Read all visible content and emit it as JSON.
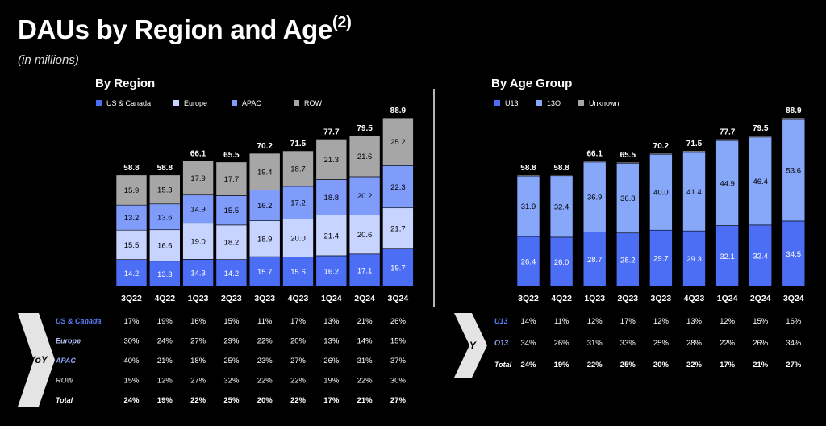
{
  "page": {
    "title": "DAUs by Region and Age",
    "title_sup": "(2)",
    "subtitle": "(in millions)"
  },
  "colors": {
    "us_canada": "#4c6ef5",
    "europe": "#c7d4ff",
    "apac": "#7f9cfb",
    "row": "#a6a6a6",
    "u13": "#4c6ef5",
    "o13": "#87a7f8",
    "unknown": "#a6a6a6",
    "us_label": "#5b7cf7",
    "europe_label": "#b8c7fb",
    "apac_label": "#8fa8fb",
    "row_label": "#a6a6a6"
  },
  "yoy_label": "YoY",
  "chart_data": [
    {
      "type": "bar",
      "stacked": true,
      "title": "By Region",
      "categories": [
        "3Q22",
        "4Q22",
        "1Q23",
        "2Q23",
        "3Q23",
        "4Q23",
        "1Q24",
        "2Q24",
        "3Q24"
      ],
      "series": [
        {
          "name": "US & Canada",
          "values": [
            14.2,
            13.3,
            14.3,
            14.2,
            15.7,
            15.6,
            16.2,
            17.1,
            19.7
          ]
        },
        {
          "name": "Europe",
          "values": [
            15.5,
            16.6,
            19.0,
            18.2,
            18.9,
            20.0,
            21.4,
            20.6,
            21.7
          ]
        },
        {
          "name": "APAC",
          "values": [
            13.2,
            13.6,
            14.9,
            15.5,
            16.2,
            17.2,
            18.8,
            20.2,
            22.3
          ]
        },
        {
          "name": "ROW",
          "values": [
            15.9,
            15.3,
            17.9,
            17.7,
            19.4,
            18.7,
            21.3,
            21.6,
            25.2
          ]
        }
      ],
      "totals": [
        58.8,
        58.8,
        66.1,
        65.5,
        70.2,
        71.5,
        77.7,
        79.5,
        88.9
      ],
      "legend": "top-left",
      "ylim": [
        0,
        100
      ],
      "yoy": {
        "rows": [
          {
            "label": "US & Canada",
            "values": [
              "17%",
              "19%",
              "16%",
              "15%",
              "11%",
              "17%",
              "13%",
              "21%",
              "26%"
            ]
          },
          {
            "label": "Europe",
            "values": [
              "30%",
              "24%",
              "27%",
              "29%",
              "22%",
              "20%",
              "13%",
              "14%",
              "15%"
            ]
          },
          {
            "label": "APAC",
            "values": [
              "40%",
              "21%",
              "18%",
              "25%",
              "23%",
              "27%",
              "26%",
              "31%",
              "37%"
            ]
          },
          {
            "label": "ROW",
            "values": [
              "15%",
              "12%",
              "27%",
              "32%",
              "22%",
              "22%",
              "19%",
              "22%",
              "30%"
            ]
          },
          {
            "label": "Total",
            "values": [
              "24%",
              "19%",
              "22%",
              "25%",
              "20%",
              "22%",
              "17%",
              "21%",
              "27%"
            ]
          }
        ]
      }
    },
    {
      "type": "bar",
      "stacked": true,
      "title": "By Age Group",
      "categories": [
        "3Q22",
        "4Q22",
        "1Q23",
        "2Q23",
        "3Q23",
        "4Q23",
        "1Q24",
        "2Q24",
        "3Q24"
      ],
      "series": [
        {
          "name": "U13",
          "values": [
            26.4,
            26.0,
            28.7,
            28.2,
            29.7,
            29.3,
            32.1,
            32.4,
            34.5
          ]
        },
        {
          "name": "13O",
          "values": [
            31.9,
            32.4,
            36.9,
            36.8,
            40.0,
            41.4,
            44.9,
            46.4,
            53.6
          ]
        },
        {
          "name": "Unknown",
          "values": [
            0.5,
            0.4,
            0.5,
            0.5,
            0.5,
            0.8,
            0.7,
            0.7,
            0.8
          ]
        }
      ],
      "totals": [
        58.8,
        58.8,
        66.1,
        65.5,
        70.2,
        71.5,
        77.7,
        79.5,
        88.9
      ],
      "legend": "top-left",
      "ylim": [
        0,
        100
      ],
      "yoy": {
        "rows": [
          {
            "label": "U13",
            "values": [
              "14%",
              "11%",
              "12%",
              "17%",
              "12%",
              "13%",
              "12%",
              "15%",
              "16%"
            ]
          },
          {
            "label": "O13",
            "values": [
              "34%",
              "26%",
              "31%",
              "33%",
              "25%",
              "28%",
              "22%",
              "26%",
              "34%"
            ]
          },
          {
            "label": "Total",
            "values": [
              "24%",
              "19%",
              "22%",
              "25%",
              "20%",
              "22%",
              "17%",
              "21%",
              "27%"
            ]
          }
        ]
      }
    }
  ]
}
